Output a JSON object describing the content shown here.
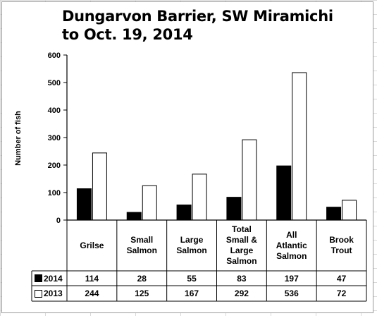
{
  "chart_data": {
    "type": "bar",
    "title_lines": [
      "Dungarvon Barrier, SW Miramichi",
      "to Oct. 19, 2014"
    ],
    "xlabel": "",
    "ylabel": "Number of fish",
    "ylim": [
      0,
      600
    ],
    "yticks": [
      "0",
      "100",
      "200",
      "300",
      "400",
      "500",
      "600"
    ],
    "categories": [
      "Grilse",
      "Small Salmon",
      "Large Salmon",
      "Total Small & Large Salmon",
      "All Atlantic Salmon",
      "Brook Trout"
    ],
    "category_lines": [
      [
        "Grilse"
      ],
      [
        "Small",
        "Salmon"
      ],
      [
        "Large",
        "Salmon"
      ],
      [
        "Total",
        "Small &",
        "Large",
        "Salmon"
      ],
      [
        "All",
        "Atlantic",
        "Salmon"
      ],
      [
        "Brook",
        "Trout"
      ]
    ],
    "series": [
      {
        "name": "2014",
        "values": [
          114,
          28,
          55,
          83,
          197,
          47
        ],
        "color": "#000000"
      },
      {
        "name": "2013",
        "values": [
          244,
          125,
          167,
          292,
          536,
          72
        ],
        "color": "#ffffff"
      }
    ],
    "grid": false,
    "legend": "data table"
  }
}
